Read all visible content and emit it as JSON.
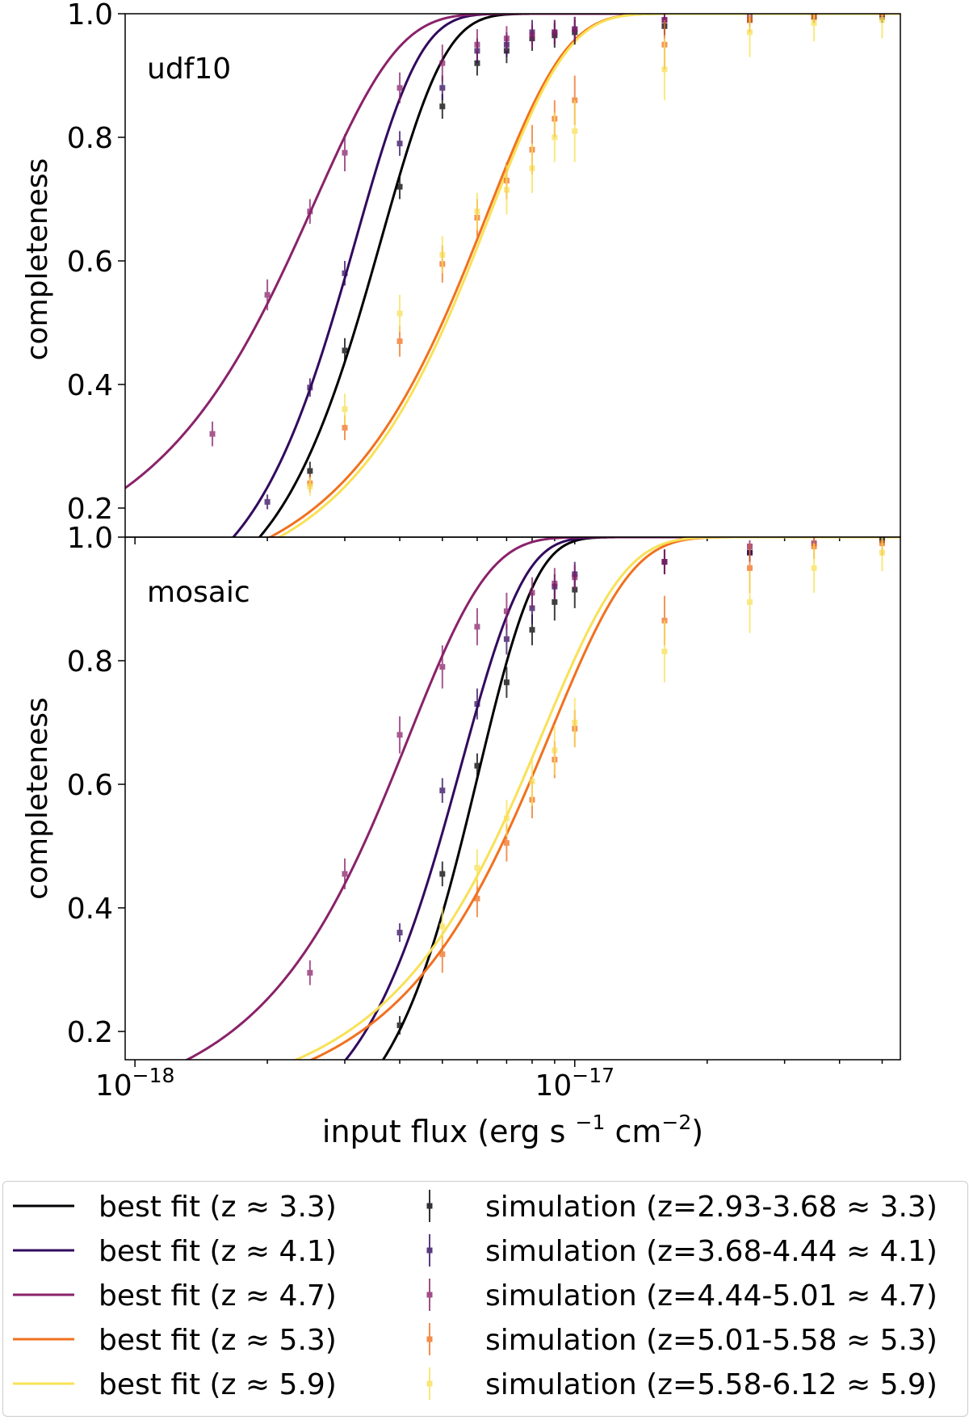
{
  "figure": {
    "xlabel_main": "input flux (erg s ",
    "xlabel_sup1": "−1",
    "xlabel_mid": " cm",
    "xlabel_sup2": "−2",
    "xlabel_end": ")",
    "x_tick_labels": [
      {
        "base": "10",
        "exp": "−18"
      },
      {
        "base": "10",
        "exp": "−17"
      }
    ]
  },
  "chart_data": [
    {
      "type": "line",
      "panel_label": "udf10",
      "ylabel": "completeness",
      "x_scale": "log",
      "xlim": [
        9.5e-19,
        5.5e-17
      ],
      "ylim": [
        0.15,
        1.0
      ],
      "y_ticks": [
        "0.2",
        "0.4",
        "0.6",
        "0.8",
        "1.0"
      ],
      "grid": false,
      "fits": [
        {
          "z": "3.3",
          "color": "#000004",
          "f50": 3.2e-18,
          "width": 1.25e-18
        },
        {
          "z": "4.1",
          "color": "#320a5e",
          "f50": 2.8e-18,
          "width": 1.1e-18
        },
        {
          "z": "4.7",
          "color": "#8a226a",
          "f50": 1.9e-18,
          "width": 1.3e-18
        },
        {
          "z": "5.3",
          "color": "#f1711f",
          "f50": 5e-18,
          "width": 2.9e-18
        },
        {
          "z": "5.9",
          "color": "#f8e157",
          "f50": 5.1e-18,
          "width": 2.9e-18
        }
      ],
      "simulations": [
        {
          "z": "3.3",
          "color": "#000004",
          "x": [
            2.5e-18,
            3e-18,
            4e-18,
            5e-18,
            6e-18,
            7e-18,
            8e-18,
            9e-18,
            1e-17,
            1.6e-17,
            2.5e-17,
            3.5e-17,
            5e-17
          ],
          "y": [
            0.26,
            0.455,
            0.72,
            0.85,
            0.92,
            0.94,
            0.96,
            0.965,
            0.97,
            0.98,
            0.99,
            0.995,
            0.995
          ],
          "err": [
            0.015,
            0.02,
            0.02,
            0.02,
            0.02,
            0.02,
            0.02,
            0.02,
            0.02,
            0.015,
            0.01,
            0.01,
            0.01
          ]
        },
        {
          "z": "4.1",
          "color": "#320a5e",
          "x": [
            2e-18,
            2.5e-18,
            3e-18,
            4e-18,
            5e-18,
            6e-18,
            7e-18,
            8e-18,
            9e-18,
            1e-17,
            1.6e-17,
            2.5e-17,
            5e-17
          ],
          "y": [
            0.21,
            0.395,
            0.58,
            0.79,
            0.88,
            0.94,
            0.95,
            0.97,
            0.97,
            0.975,
            0.99,
            0.99,
            0.995
          ],
          "err": [
            0.012,
            0.015,
            0.02,
            0.02,
            0.02,
            0.02,
            0.02,
            0.02,
            0.02,
            0.02,
            0.01,
            0.01,
            0.01
          ]
        },
        {
          "z": "4.7",
          "color": "#8a226a",
          "x": [
            1.5e-18,
            2e-18,
            2.5e-18,
            3e-18,
            4e-18,
            5e-18,
            6e-18,
            7e-18,
            8e-18,
            9e-18,
            1e-17,
            1.6e-17,
            2.5e-17
          ],
          "y": [
            0.32,
            0.545,
            0.68,
            0.775,
            0.88,
            0.92,
            0.95,
            0.96,
            0.965,
            0.97,
            0.975,
            0.99,
            0.995
          ],
          "err": [
            0.02,
            0.025,
            0.02,
            0.03,
            0.025,
            0.03,
            0.025,
            0.02,
            0.02,
            0.02,
            0.02,
            0.01,
            0.01
          ]
        },
        {
          "z": "5.3",
          "color": "#f1711f",
          "x": [
            2.5e-18,
            3e-18,
            4e-18,
            5e-18,
            6e-18,
            7e-18,
            8e-18,
            9e-18,
            1e-17,
            1.6e-17,
            2.5e-17,
            3.5e-17,
            5e-17
          ],
          "y": [
            0.24,
            0.33,
            0.47,
            0.595,
            0.67,
            0.73,
            0.78,
            0.83,
            0.86,
            0.95,
            0.99,
            0.995,
            1.0
          ],
          "err": [
            0.015,
            0.02,
            0.025,
            0.03,
            0.03,
            0.03,
            0.04,
            0.03,
            0.04,
            0.04,
            0.02,
            0.01,
            0.01
          ]
        },
        {
          "z": "5.9",
          "color": "#f8e157",
          "x": [
            2.5e-18,
            3e-18,
            4e-18,
            5e-18,
            6e-18,
            7e-18,
            8e-18,
            9e-18,
            1e-17,
            1.6e-17,
            2.5e-17,
            3.5e-17,
            5e-17
          ],
          "y": [
            0.235,
            0.36,
            0.515,
            0.61,
            0.68,
            0.715,
            0.75,
            0.8,
            0.81,
            0.91,
            0.97,
            0.985,
            0.99
          ],
          "err": [
            0.015,
            0.025,
            0.03,
            0.03,
            0.03,
            0.04,
            0.04,
            0.04,
            0.05,
            0.05,
            0.04,
            0.03,
            0.03
          ]
        }
      ]
    },
    {
      "type": "line",
      "panel_label": "mosaic",
      "ylabel": "completeness",
      "x_scale": "log",
      "xlim": [
        9.5e-19,
        5.5e-17
      ],
      "ylim": [
        0.15,
        1.0
      ],
      "y_ticks": [
        "0.2",
        "0.4",
        "0.6",
        "0.8",
        "1.0"
      ],
      "grid": false,
      "fits": [
        {
          "z": "3.3",
          "color": "#000004",
          "f50": 5.5e-18,
          "width": 1.8e-18
        },
        {
          "z": "4.1",
          "color": "#320a5e",
          "f50": 4.9e-18,
          "width": 1.85e-18
        },
        {
          "z": "4.7",
          "color": "#8a226a",
          "f50": 3.3e-18,
          "width": 1.95e-18
        },
        {
          "z": "5.3",
          "color": "#f1711f",
          "f50": 6.8e-18,
          "width": 4.2e-18
        },
        {
          "z": "5.9",
          "color": "#f8e157",
          "f50": 6.5e-18,
          "width": 4.1e-18
        }
      ],
      "simulations": [
        {
          "z": "3.3",
          "color": "#000004",
          "x": [
            4e-18,
            5e-18,
            6e-18,
            7e-18,
            8e-18,
            9e-18,
            1e-17,
            1.6e-17,
            2.5e-17,
            5e-17
          ],
          "y": [
            0.21,
            0.455,
            0.63,
            0.765,
            0.85,
            0.895,
            0.915,
            0.96,
            0.975,
            0.995
          ],
          "err": [
            0.015,
            0.02,
            0.02,
            0.025,
            0.025,
            0.03,
            0.03,
            0.02,
            0.015,
            0.01
          ]
        },
        {
          "z": "4.1",
          "color": "#320a5e",
          "x": [
            4e-18,
            5e-18,
            6e-18,
            7e-18,
            8e-18,
            9e-18,
            1e-17,
            1.6e-17,
            2.5e-17
          ],
          "y": [
            0.36,
            0.59,
            0.73,
            0.835,
            0.885,
            0.92,
            0.94,
            0.96,
            0.975
          ],
          "err": [
            0.015,
            0.02,
            0.025,
            0.025,
            0.025,
            0.02,
            0.02,
            0.02,
            0.015
          ]
        },
        {
          "z": "4.7",
          "color": "#8a226a",
          "x": [
            2.5e-18,
            3e-18,
            4e-18,
            5e-18,
            6e-18,
            7e-18,
            8e-18,
            9e-18,
            1e-17,
            1.6e-17,
            2.5e-17,
            3.5e-17
          ],
          "y": [
            0.295,
            0.455,
            0.68,
            0.79,
            0.855,
            0.88,
            0.91,
            0.925,
            0.935,
            0.96,
            0.985,
            0.99
          ],
          "err": [
            0.02,
            0.025,
            0.03,
            0.035,
            0.03,
            0.03,
            0.025,
            0.025,
            0.02,
            0.02,
            0.01,
            0.01
          ]
        },
        {
          "z": "5.3",
          "color": "#f1711f",
          "x": [
            5e-18,
            6e-18,
            7e-18,
            8e-18,
            9e-18,
            1e-17,
            1.6e-17,
            2.5e-17,
            3.5e-17,
            5e-17
          ],
          "y": [
            0.325,
            0.415,
            0.505,
            0.575,
            0.64,
            0.69,
            0.865,
            0.95,
            0.985,
            0.99
          ],
          "err": [
            0.03,
            0.03,
            0.03,
            0.03,
            0.03,
            0.03,
            0.04,
            0.04,
            0.02,
            0.02
          ]
        },
        {
          "z": "5.9",
          "color": "#f8e157",
          "x": [
            5e-18,
            6e-18,
            7e-18,
            8e-18,
            9e-18,
            1e-17,
            1.6e-17,
            2.5e-17,
            3.5e-17,
            5e-17
          ],
          "y": [
            0.37,
            0.465,
            0.545,
            0.605,
            0.655,
            0.7,
            0.815,
            0.895,
            0.95,
            0.975
          ],
          "err": [
            0.03,
            0.03,
            0.03,
            0.04,
            0.04,
            0.04,
            0.05,
            0.05,
            0.04,
            0.03
          ]
        }
      ]
    }
  ],
  "legend": {
    "fits": [
      {
        "label": "best fit (z ≈ 3.3)",
        "color": "#000004"
      },
      {
        "label": "best fit (z ≈ 4.1)",
        "color": "#320a5e"
      },
      {
        "label": "best fit (z ≈ 4.7)",
        "color": "#8a226a"
      },
      {
        "label": "best fit (z ≈ 5.3)",
        "color": "#f1711f"
      },
      {
        "label": "best fit (z ≈ 5.9)",
        "color": "#f8e157"
      }
    ],
    "simulations": [
      {
        "label": "simulation (z=2.93-3.68 ≈ 3.3)",
        "color": "#000004"
      },
      {
        "label": "simulation (z=3.68-4.44 ≈ 4.1)",
        "color": "#320a5e"
      },
      {
        "label": "simulation (z=4.44-5.01 ≈ 4.7)",
        "color": "#8a226a"
      },
      {
        "label": "simulation (z=5.01-5.58 ≈ 5.3)",
        "color": "#f1711f"
      },
      {
        "label": "simulation (z=5.58-6.12 ≈ 5.9)",
        "color": "#f8e157"
      }
    ]
  }
}
